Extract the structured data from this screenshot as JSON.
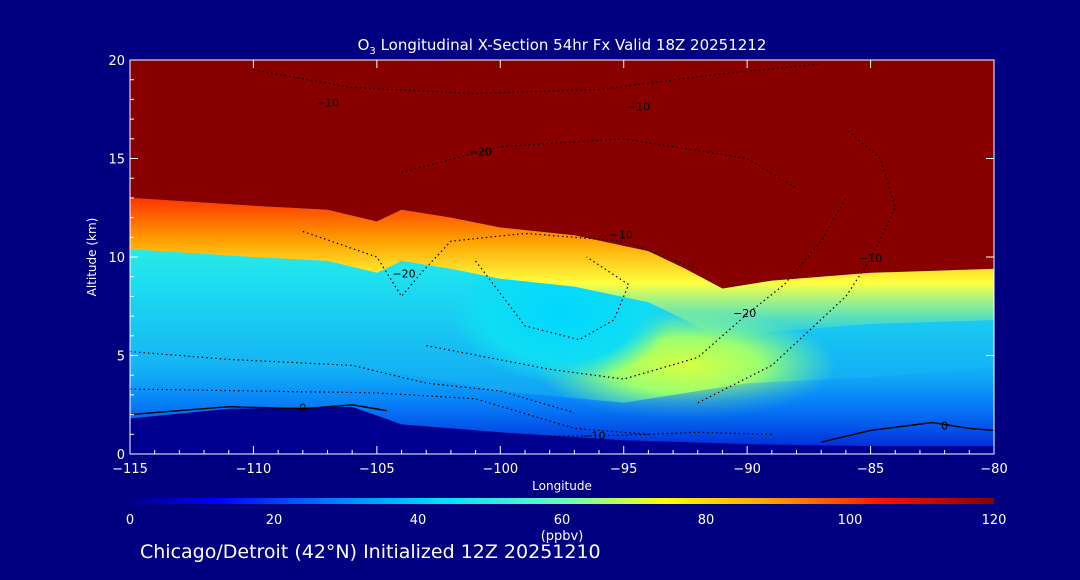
{
  "chart_data": {
    "type": "heatmap",
    "title": "O3 Longitudinal X-Section 54hr  Fx Valid 18Z 20251212",
    "title_parts": {
      "species": "O",
      "subscript": "3",
      "rest": " Longitudinal X-Section 54hr  Fx Valid 18Z 20251212"
    },
    "xlabel": "Longitude",
    "ylabel": "Altitude (km)",
    "xlim": [
      -115,
      -80
    ],
    "ylim": [
      0,
      20
    ],
    "xticks": [
      -115,
      -110,
      -105,
      -100,
      -95,
      -90,
      -85,
      -80
    ],
    "yticks": [
      0,
      5,
      10,
      15,
      20
    ],
    "xtick_labels": [
      "−115",
      "−110",
      "−105",
      "−100",
      "−95",
      "−90",
      "−85",
      "−80"
    ],
    "ytick_labels": [
      "0",
      "5",
      "10",
      "15",
      "20"
    ],
    "colorbar": {
      "label": "(ppbv)",
      "range": [
        0,
        120
      ],
      "ticks": [
        0,
        20,
        40,
        60,
        80,
        100,
        120
      ],
      "tick_labels": [
        "0",
        "20",
        "40",
        "60",
        "80",
        "100",
        "120"
      ]
    },
    "stratosphere_value": 120,
    "tropopause_altitude_km": [
      [
        -115,
        13.0
      ],
      [
        -110,
        12.6
      ],
      [
        -107,
        12.4
      ],
      [
        -105,
        11.8
      ],
      [
        -104,
        12.4
      ],
      [
        -102,
        12.0
      ],
      [
        -100,
        11.5
      ],
      [
        -97,
        11.1
      ],
      [
        -94,
        10.3
      ],
      [
        -92.5,
        9.4
      ],
      [
        -91,
        8.4
      ],
      [
        -89,
        8.8
      ],
      [
        -85,
        9.2
      ],
      [
        -80,
        9.4
      ]
    ],
    "terrain_altitude_km": [
      [
        -115,
        1.8
      ],
      [
        -111,
        2.3
      ],
      [
        -106,
        2.4
      ],
      [
        -104,
        1.5
      ],
      [
        -100,
        1.1
      ],
      [
        -95,
        0.7
      ],
      [
        -90,
        0.5
      ],
      [
        -85,
        0.4
      ],
      [
        -80,
        0.4
      ]
    ],
    "anomaly_contours": [
      {
        "value": -10,
        "label": "−10",
        "at": [
          -107,
          17.8
        ]
      },
      {
        "value": -10,
        "label": "−10",
        "at": [
          -94.4,
          17.6
        ]
      },
      {
        "value": -20,
        "label": "−20",
        "at": [
          -100.8,
          15.3
        ]
      },
      {
        "value": -10,
        "label": "−10",
        "at": [
          -95.1,
          11.1
        ]
      },
      {
        "value": -20,
        "label": "−20",
        "at": [
          -103.9,
          9.1
        ]
      },
      {
        "value": -20,
        "label": "−20",
        "at": [
          -90.1,
          7.1
        ]
      },
      {
        "value": -10,
        "label": "−10",
        "at": [
          -85,
          9.9
        ]
      },
      {
        "value": 0,
        "label": "0",
        "at": [
          -108,
          2.3
        ]
      },
      {
        "value": -10,
        "label": "−10",
        "at": [
          -96.2,
          0.9
        ]
      },
      {
        "value": 0,
        "label": "0",
        "at": [
          -82,
          1.4
        ]
      }
    ]
  },
  "footer": {
    "caption": "Chicago/Detroit (42°N) Initialized 12Z 20251210"
  }
}
